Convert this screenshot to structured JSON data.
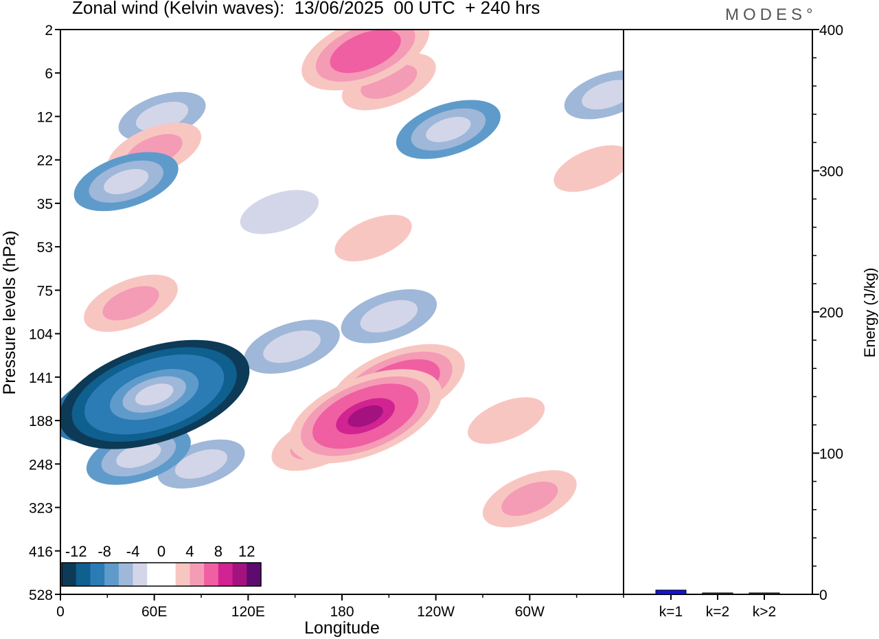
{
  "header": {
    "title": "Zonal wind (Kelvin waves):  13/06/2025  00 UTC  + 240 hrs",
    "brand": "MODES°"
  },
  "colors": {
    "neg": [
      "#0d3a56",
      "#0f5f8f",
      "#2b7bb5",
      "#5e9bcb",
      "#9fb7d8",
      "#d3d6e8"
    ],
    "zero": "#ffffff",
    "pos": [
      "#f8c6c1",
      "#f49bb6",
      "#ef5fa2",
      "#d12391",
      "#a3127f",
      "#5d0b6f"
    ],
    "bar": "#1414d6"
  },
  "chart_data": [
    {
      "type": "heatmap",
      "title": "Zonal wind (Kelvin waves):  13/06/2025  00 UTC  + 240 hrs",
      "xlabel": "Longitude",
      "ylabel": "Pressure levels (hPa)",
      "x_ticks": [
        "0",
        "60E",
        "120E",
        "180",
        "120W",
        "60W"
      ],
      "y_ticks": [
        "2",
        "6",
        "12",
        "22",
        "35",
        "53",
        "75",
        "104",
        "141",
        "188",
        "248",
        "323",
        "416",
        "528"
      ],
      "colorbar_labels": [
        "-12",
        "-8",
        "-4",
        "0",
        "4",
        "8",
        "12"
      ],
      "contour_levels": [
        -14,
        -12,
        -10,
        -8,
        -6,
        -4,
        -2,
        2,
        4,
        6,
        8,
        10,
        12,
        14
      ],
      "features": [
        {
          "lon": 42,
          "level": 3.5,
          "value": -6
        },
        {
          "lon": 65,
          "level": 2.0,
          "value": -4
        },
        {
          "lon": 195,
          "level": 0.5,
          "value": 9
        },
        {
          "lon": 210,
          "level": 1.2,
          "value": 5
        },
        {
          "lon": 248,
          "level": 2.3,
          "value": -6
        },
        {
          "lon": 60,
          "level": 8.4,
          "value": -16
        },
        {
          "lon": 38,
          "level": 8.6,
          "value": -10
        },
        {
          "lon": 50,
          "level": 9.8,
          "value": -6
        },
        {
          "lon": 90,
          "level": 10.0,
          "value": -4
        },
        {
          "lon": 148,
          "level": 7.3,
          "value": -5
        },
        {
          "lon": 210,
          "level": 6.6,
          "value": -5
        },
        {
          "lon": 195,
          "level": 8.9,
          "value": 12
        },
        {
          "lon": 215,
          "level": 8.2,
          "value": 10
        },
        {
          "lon": 165,
          "level": 9.5,
          "value": 5
        },
        {
          "lon": 285,
          "level": 9.0,
          "value": 3
        },
        {
          "lon": 300,
          "level": 10.8,
          "value": 5
        },
        {
          "lon": 45,
          "level": 6.3,
          "value": 5
        },
        {
          "lon": 200,
          "level": 4.8,
          "value": 3
        },
        {
          "lon": 140,
          "level": 4.2,
          "value": -3
        },
        {
          "lon": 60,
          "level": 2.8,
          "value": 5
        },
        {
          "lon": 340,
          "level": 3.2,
          "value": 3
        },
        {
          "lon": 350,
          "level": 1.5,
          "value": -4
        }
      ]
    },
    {
      "type": "bar",
      "ylabel": "Energy (J/kg)",
      "categories": [
        "k=1",
        "k=2",
        "k>2"
      ],
      "values": [
        3,
        1,
        1
      ],
      "ylim": [
        0,
        400
      ],
      "y_ticks": [
        "0",
        "100",
        "200",
        "300",
        "400"
      ]
    }
  ]
}
